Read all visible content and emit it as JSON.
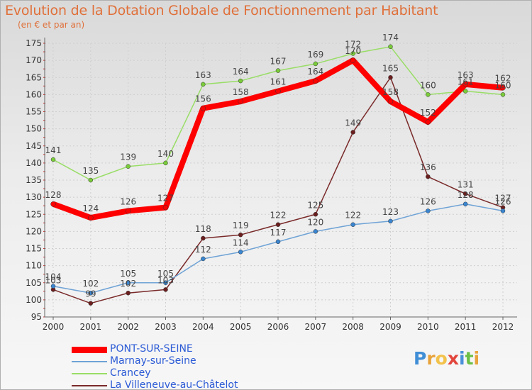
{
  "title": "Evolution de la Dotation Globale de Fonctionnement par Habitant",
  "subtitle": "(en € et par an)",
  "brand": {
    "text": "Proxiti",
    "letters": [
      {
        "ch": "P",
        "color": "#3f8ed6"
      },
      {
        "ch": "r",
        "color": "#e8a33b"
      },
      {
        "ch": "o",
        "color": "#f2c24a"
      },
      {
        "ch": "x",
        "color": "#e2453c"
      },
      {
        "ch": "i",
        "color": "#4a90d9"
      },
      {
        "ch": "t",
        "color": "#6cbf45"
      },
      {
        "ch": "i",
        "color": "#e8a33b"
      }
    ]
  },
  "chart_data": {
    "type": "line",
    "x": [
      "2000",
      "2001",
      "2002",
      "2003",
      "2004",
      "2005",
      "2006",
      "2007",
      "2008",
      "2009",
      "2010",
      "2011",
      "2012"
    ],
    "ylim": [
      95,
      175
    ],
    "yticks": [
      95,
      100,
      105,
      110,
      115,
      120,
      125,
      130,
      135,
      140,
      145,
      150,
      155,
      160,
      165,
      170,
      175
    ],
    "grid": true,
    "legend_position": "bottom",
    "series": [
      {
        "name": "PONT-SUR-SEINE",
        "color": "#ff0000",
        "marker": "#ff0000",
        "width": 8,
        "values": [
          128,
          124,
          126,
          127,
          156,
          158,
          161,
          164,
          170,
          158,
          152,
          163,
          162
        ]
      },
      {
        "name": "Marnay-sur-Seine",
        "color": "#6fa3d6",
        "marker": "#3a85cf",
        "width": 1.5,
        "values": [
          104,
          102,
          105,
          105,
          112,
          114,
          117,
          120,
          122,
          123,
          126,
          128,
          126
        ]
      },
      {
        "name": "Crancey",
        "color": "#99dd66",
        "marker": "#7acc3a",
        "width": 1.5,
        "values": [
          141,
          135,
          139,
          140,
          163,
          164,
          167,
          169,
          172,
          174,
          160,
          161,
          160
        ]
      },
      {
        "name": "La Villeneuve-au-Châtelot",
        "color": "#7a2a2a",
        "marker": "#6b1e1e",
        "width": 1.5,
        "values": [
          103,
          99,
          102,
          103,
          118,
          119,
          122,
          125,
          149,
          165,
          136,
          131,
          127
        ]
      }
    ]
  }
}
